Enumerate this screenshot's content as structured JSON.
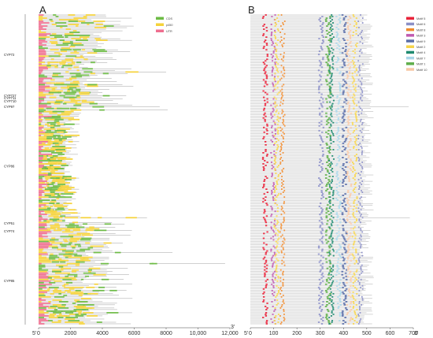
{
  "panels": {
    "a_label": "A",
    "b_label": "B"
  },
  "clans": [
    "CYP72",
    "CYP727",
    "CYP711",
    "CYP710",
    "CYP97",
    "CYP86",
    "CYP51",
    "CYP74",
    "CYP85"
  ],
  "legend_a": [
    {
      "label": "CDS",
      "color": "#6dbb45"
    },
    {
      "label": "p450",
      "color": "#f5d23a"
    },
    {
      "label": "UTR",
      "color": "#ef6e8f"
    }
  ],
  "legend_b": [
    {
      "label": "Motif 5",
      "color": "#e8233a"
    },
    {
      "label": "Motif 6",
      "color": "#8b8fc6"
    },
    {
      "label": "Motif 8",
      "color": "#f08a2c"
    },
    {
      "label": "Motif 3",
      "color": "#c05ab0"
    },
    {
      "label": "Motif 9",
      "color": "#5a6ea8"
    },
    {
      "label": "Motif 2",
      "color": "#f6d44a"
    },
    {
      "label": "Motif 4",
      "color": "#1f8a70"
    },
    {
      "label": "Motif 7",
      "color": "#a9d6e8"
    },
    {
      "label": "Motif 1",
      "color": "#5fae4a"
    },
    {
      "label": "Motif 10",
      "color": "#f7c8a6"
    }
  ],
  "axis_a": {
    "ticks": [
      "0",
      "2000",
      "4000",
      "6000",
      "8000",
      "10,000",
      "12,000"
    ],
    "start_label": "5'",
    "end_label": "3'"
  },
  "axis_b": {
    "ticks": [
      "0",
      "100",
      "200",
      "300",
      "400",
      "500",
      "600",
      "700"
    ],
    "start_label": "5'",
    "end_label": "3'"
  },
  "chart_data": [
    {
      "type": "gene structure",
      "panel": "A",
      "xlim": [
        0,
        12000
      ],
      "series": [
        "CDS",
        "p450",
        "UTR"
      ],
      "group_labels": [
        "CYP72",
        "CYP727",
        "CYP711",
        "CYP710",
        "CYP97",
        "CYP86",
        "CYP51",
        "CYP74",
        "CYP85"
      ]
    },
    {
      "type": "motif distribution",
      "panel": "B",
      "xlim": [
        0,
        700
      ],
      "series": [
        "Motif 5",
        "Motif 6",
        "Motif 8",
        "Motif 3",
        "Motif 9",
        "Motif 2",
        "Motif 4",
        "Motif 7",
        "Motif 1",
        "Motif 10"
      ]
    }
  ]
}
